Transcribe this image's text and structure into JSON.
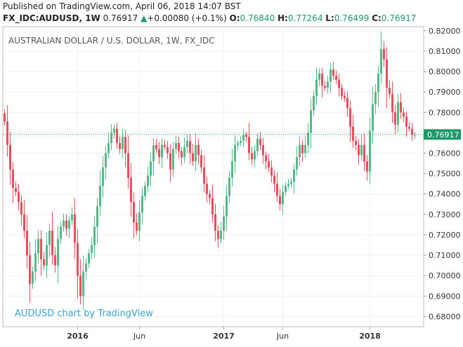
{
  "header": {
    "published": "Published on TradingView.com, April 06, 2018 14:07 BST",
    "symbol": "FX_IDC:AUDUSD, 1W",
    "last": "0.76917",
    "arrow": "▲",
    "change": "+0.00080 (+0.1%)",
    "o_label": "O:",
    "o_value": "0.76840",
    "h_label": "H:",
    "h_value": "0.77264",
    "l_label": "L:",
    "l_value": "0.76499",
    "c_label": "C:",
    "c_value": "0.76917"
  },
  "chart_data": {
    "type": "candlestick",
    "title": "AUSTRALIAN DOLLAR / U.S. DOLLAR, 1W, FX_IDC",
    "watermark": "AUDUSD chart by TradingView",
    "ylim": [
      0.675,
      0.822
    ],
    "yticks": [
      "0.68000",
      "0.69000",
      "0.70000",
      "0.71000",
      "0.72000",
      "0.73000",
      "0.74000",
      "0.75000",
      "0.76000",
      "0.77000",
      "0.78000",
      "0.79000",
      "0.80000",
      "0.81000",
      "0.82000"
    ],
    "xticks": [
      {
        "label": "2016",
        "index": 26,
        "bold": true
      },
      {
        "label": "Jun",
        "index": 48,
        "bold": false
      },
      {
        "label": "2017",
        "index": 78,
        "bold": true
      },
      {
        "label": "Jun",
        "index": 99,
        "bold": false
      },
      {
        "label": "2018",
        "index": 130,
        "bold": true
      }
    ],
    "last_price": 0.76917,
    "last_price_label": "0.76917",
    "colors": {
      "up": "#53b987",
      "down": "#eb4d5c",
      "last": "#1c9a6a"
    },
    "start_close": 0.7795,
    "closes": [
      0.7755,
      0.764,
      0.752,
      0.743,
      0.741,
      0.736,
      0.73,
      0.722,
      0.71,
      0.696,
      0.702,
      0.711,
      0.718,
      0.708,
      0.705,
      0.715,
      0.722,
      0.71,
      0.705,
      0.718,
      0.724,
      0.727,
      0.723,
      0.727,
      0.73,
      0.716,
      0.7,
      0.69,
      0.702,
      0.706,
      0.711,
      0.715,
      0.724,
      0.734,
      0.744,
      0.753,
      0.76,
      0.765,
      0.77,
      0.772,
      0.765,
      0.762,
      0.768,
      0.76,
      0.748,
      0.736,
      0.726,
      0.722,
      0.731,
      0.739,
      0.744,
      0.749,
      0.756,
      0.764,
      0.762,
      0.758,
      0.764,
      0.763,
      0.76,
      0.752,
      0.762,
      0.765,
      0.761,
      0.758,
      0.763,
      0.766,
      0.76,
      0.756,
      0.764,
      0.759,
      0.753,
      0.745,
      0.74,
      0.738,
      0.73,
      0.722,
      0.718,
      0.722,
      0.729,
      0.739,
      0.748,
      0.756,
      0.764,
      0.765,
      0.766,
      0.769,
      0.768,
      0.76,
      0.757,
      0.761,
      0.767,
      0.764,
      0.759,
      0.756,
      0.753,
      0.749,
      0.745,
      0.739,
      0.735,
      0.741,
      0.744,
      0.745,
      0.746,
      0.752,
      0.758,
      0.764,
      0.76,
      0.764,
      0.77,
      0.781,
      0.788,
      0.796,
      0.799,
      0.793,
      0.792,
      0.795,
      0.801,
      0.798,
      0.796,
      0.792,
      0.788,
      0.787,
      0.782,
      0.773,
      0.766,
      0.764,
      0.759,
      0.764,
      0.756,
      0.751,
      0.771,
      0.784,
      0.79,
      0.799,
      0.811,
      0.806,
      0.792,
      0.789,
      0.78,
      0.774,
      0.785,
      0.78,
      0.778,
      0.773,
      0.772,
      0.769,
      0.7692
    ]
  }
}
